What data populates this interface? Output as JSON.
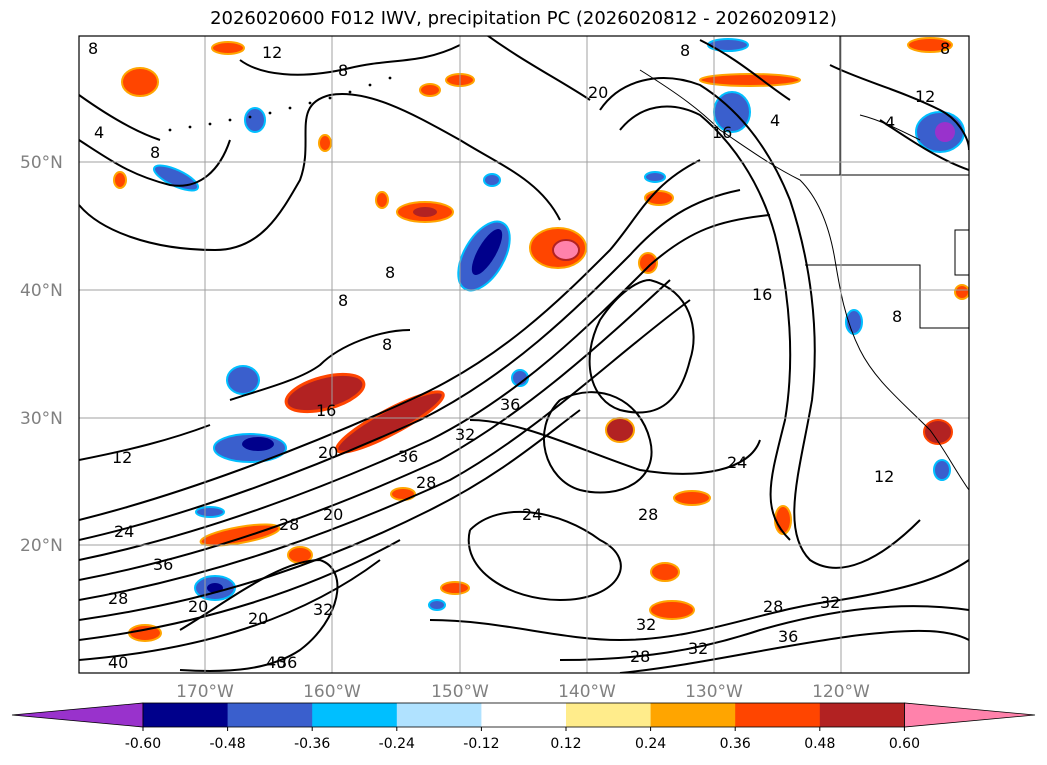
{
  "title": "2026020600 F012 IWV, precipitation PC (2026020812 - 2026020912)",
  "map": {
    "lat_labels": [
      "50°N",
      "40°N",
      "30°N",
      "20°N"
    ],
    "lon_labels": [
      "170°W",
      "160°W",
      "150°W",
      "140°W",
      "130°W",
      "120°W"
    ],
    "contour_labels": [
      "8",
      "12",
      "8",
      "4",
      "8",
      "20",
      "16",
      "8",
      "4",
      "12",
      "4",
      "8",
      "8",
      "8",
      "8",
      "16",
      "16",
      "12",
      "36",
      "32",
      "20",
      "36",
      "28",
      "24",
      "24",
      "24",
      "28",
      "20",
      "20",
      "36",
      "32",
      "28",
      "20",
      "28",
      "32",
      "28",
      "32",
      "36",
      "40",
      "40",
      "28",
      "32",
      "36",
      "12",
      "8"
    ]
  },
  "colorbar": {
    "ticks": [
      "-0.60",
      "-0.48",
      "-0.36",
      "-0.24",
      "-0.12",
      "0.12",
      "0.24",
      "0.36",
      "0.48",
      "0.60"
    ],
    "colors": [
      "#9932cc",
      "#00008b",
      "#3a5fcd",
      "#00bfff",
      "#b0e2ff",
      "#ffffff",
      "#ffec8b",
      "#ffa500",
      "#ff4500",
      "#b22222",
      "#ff82ab"
    ]
  }
}
